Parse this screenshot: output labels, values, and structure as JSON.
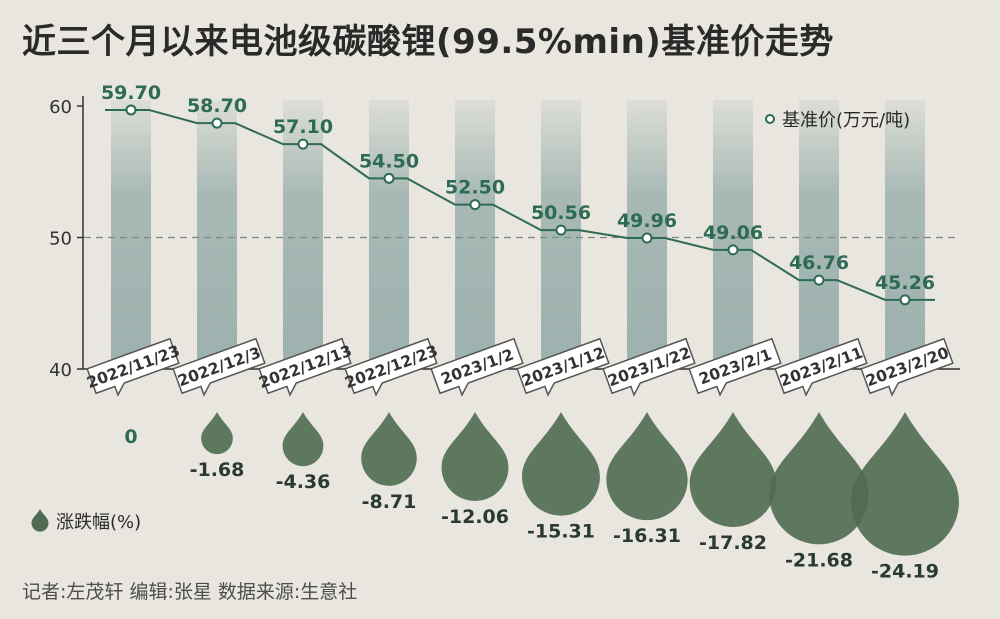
{
  "title": "近三个月以来电池级碳酸锂(99.5%min)基准价走势",
  "credits": "记者:左茂轩  编辑:张星   数据来源:生意社",
  "chart_data": {
    "type": "line",
    "categories": [
      "2022/11/23",
      "2022/12/3",
      "2022/12/13",
      "2022/12/23",
      "2023/1/2",
      "2023/1/12",
      "2023/1/22",
      "2023/2/1",
      "2023/2/11",
      "2023/2/20"
    ],
    "series": [
      {
        "name": "基准价(万元/吨)",
        "values": [
          59.7,
          58.7,
          57.1,
          54.5,
          52.5,
          50.56,
          49.96,
          49.06,
          46.76,
          45.26
        ],
        "labels": [
          "59.70",
          "58.70",
          "57.10",
          "54.50",
          "52.50",
          "50.56",
          "49.96",
          "49.06",
          "46.76",
          "45.26"
        ]
      },
      {
        "name": "涨跌幅(%)",
        "values": [
          0,
          -1.68,
          -4.36,
          -8.71,
          -12.06,
          -15.31,
          -16.31,
          -17.82,
          -21.68,
          -24.19
        ],
        "labels": [
          "0",
          "-1.68",
          "-4.36",
          "-8.71",
          "-12.06",
          "-15.31",
          "-16.31",
          "-17.82",
          "-21.68",
          "-24.19"
        ]
      }
    ],
    "y_ticks": [
      "40",
      "50",
      "60"
    ],
    "ylim": [
      40,
      62
    ],
    "reference_line": 50,
    "legend": [
      "基准价(万元/吨)",
      "涨跌幅(%)"
    ],
    "colors": {
      "line": "#2e6b55",
      "drop": "#4f6b52",
      "band": "#9db1ae",
      "background": "#e8e6de"
    }
  }
}
